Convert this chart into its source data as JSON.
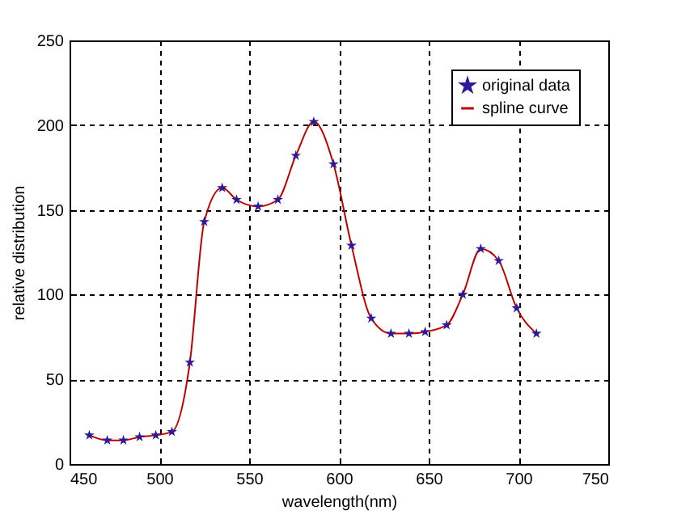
{
  "chart_data": {
    "type": "line",
    "xlabel": "wavelength(nm)",
    "ylabel": "relative distribution",
    "xlim": [
      450,
      750
    ],
    "xticks": [
      450,
      500,
      550,
      600,
      650,
      700,
      750
    ],
    "ylim": [
      0,
      250
    ],
    "yticks": [
      0,
      50,
      100,
      150,
      200,
      250
    ],
    "grid": true,
    "legend": "top right",
    "series": [
      {
        "name": "original data",
        "type": "scatter",
        "marker": "star",
        "color": "#2b1a9c",
        "x": [
          461,
          471,
          480,
          489,
          498,
          507,
          517,
          525,
          535,
          543,
          555,
          566,
          576,
          586,
          597,
          607,
          618,
          629,
          639,
          648,
          660,
          669,
          679,
          689,
          699,
          710
        ],
        "values": [
          17,
          14,
          14,
          16,
          17,
          19,
          60,
          143,
          163,
          156,
          152,
          156,
          182,
          202,
          177,
          129,
          86,
          77,
          77,
          78,
          82,
          100,
          127,
          120,
          92,
          77
        ]
      },
      {
        "name": "spline curve",
        "type": "line",
        "line_style": "solid",
        "color": "#c00000",
        "x": [
          461,
          471,
          480,
          489,
          498,
          507,
          517,
          525,
          535,
          543,
          555,
          566,
          576,
          586,
          597,
          607,
          618,
          629,
          639,
          648,
          660,
          669,
          679,
          689,
          699,
          710
        ],
        "values": [
          17,
          14,
          14,
          16,
          17,
          19,
          60,
          143,
          163,
          156,
          152,
          156,
          182,
          202,
          177,
          129,
          86,
          77,
          77,
          78,
          82,
          100,
          127,
          120,
          92,
          77
        ]
      }
    ]
  }
}
